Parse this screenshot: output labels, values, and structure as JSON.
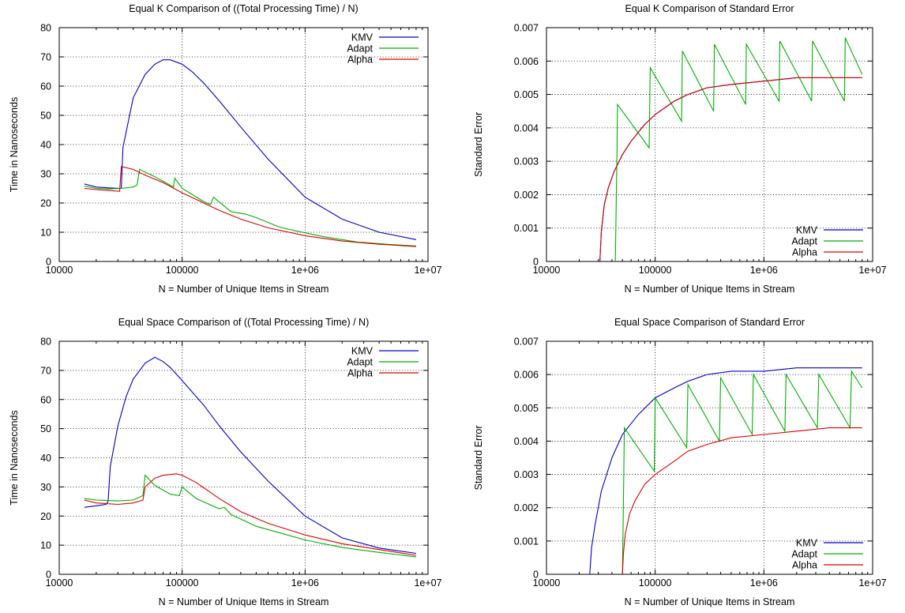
{
  "colors": {
    "KMV": "#0000cc",
    "Adapt": "#00b000",
    "Alpha": "#dd0000"
  },
  "chart_data": [
    {
      "type": "line",
      "title": "Equal K Comparison of ((Total Processing Time) / N)",
      "xlabel": "N = Number of Unique Items in Stream",
      "ylabel": "Time in Nanoseconds",
      "xscale": "log",
      "xlim": [
        10000,
        10000000
      ],
      "ylim": [
        0,
        80
      ],
      "xticks": [
        10000,
        100000,
        1000000,
        10000000
      ],
      "xtick_labels": [
        "10000",
        "100000",
        "1e+06",
        "1e+07"
      ],
      "yticks": [
        0,
        10,
        20,
        30,
        40,
        50,
        60,
        70,
        80
      ],
      "ytick_labels": [
        "0",
        "10",
        "20",
        "30",
        "40",
        "50",
        "60",
        "70",
        "80"
      ],
      "grid": true,
      "legend_position": "top-right",
      "series": [
        {
          "name": "KMV",
          "color_key": "KMV",
          "x": [
            16000,
            20000,
            25000,
            32000,
            33000,
            40000,
            50000,
            60000,
            70000,
            80000,
            100000,
            120000,
            150000,
            200000,
            300000,
            500000,
            1000000,
            2000000,
            4000000,
            8000000
          ],
          "y": [
            26.5,
            25.5,
            25.2,
            25,
            39,
            56,
            64,
            67.5,
            69,
            69,
            67.5,
            65,
            61,
            55,
            46,
            35,
            22,
            14.5,
            10,
            7.5
          ]
        },
        {
          "name": "Adapt",
          "color_key": "Adapt",
          "x": [
            16000,
            20000,
            25000,
            32000,
            40000,
            43000,
            45000,
            60000,
            85000,
            87000,
            100000,
            150000,
            170000,
            180000,
            250000,
            300000,
            330000,
            400000,
            600000,
            650000,
            1000000,
            1300000,
            1400000,
            2000000,
            2700000,
            3000000,
            5000000,
            8000000
          ],
          "y": [
            25.8,
            25,
            24.8,
            25,
            25.5,
            26.2,
            31.5,
            29,
            25.5,
            28.5,
            25,
            20.5,
            19.5,
            22,
            17,
            16.5,
            16.2,
            15,
            12,
            11.5,
            9.8,
            8.8,
            8.5,
            7.5,
            6.6,
            6.5,
            5.8,
            5.3
          ]
        },
        {
          "name": "Alpha",
          "color_key": "Alpha",
          "x": [
            16000,
            20000,
            25000,
            31000,
            32000,
            40000,
            50000,
            70000,
            100000,
            150000,
            200000,
            300000,
            500000,
            1000000,
            2000000,
            4000000,
            8000000
          ],
          "y": [
            25,
            24.6,
            24.3,
            24,
            32.5,
            31.5,
            29.5,
            27,
            23.5,
            20,
            17.5,
            14.5,
            11.5,
            8.8,
            7,
            5.9,
            5.1
          ]
        }
      ]
    },
    {
      "type": "line",
      "title": "Equal K Comparison of Standard Error",
      "xlabel": "N = Number of Unique Items in Stream",
      "ylabel": "Standard Error",
      "xscale": "log",
      "xlim": [
        10000,
        10000000
      ],
      "ylim": [
        0,
        0.007
      ],
      "xticks": [
        10000,
        100000,
        1000000,
        10000000
      ],
      "xtick_labels": [
        "10000",
        "100000",
        "1e+06",
        "1e+07"
      ],
      "yticks": [
        0,
        0.001,
        0.002,
        0.003,
        0.004,
        0.005,
        0.006,
        0.007
      ],
      "ytick_labels": [
        "0",
        "0.001",
        "0.002",
        "0.003",
        "0.004",
        "0.005",
        "0.006",
        "0.007"
      ],
      "grid": true,
      "legend_position": "bottom-right",
      "series": [
        {
          "name": "KMV",
          "color_key": "KMV",
          "x": [
            31000,
            32000,
            34000,
            37000,
            42000,
            50000,
            60000,
            80000,
            100000,
            150000,
            200000,
            300000,
            500000,
            1000000,
            2000000,
            4000000,
            8000000
          ],
          "y": [
            0,
            0.0009,
            0.0017,
            0.0022,
            0.0027,
            0.0032,
            0.0036,
            0.0041,
            0.0044,
            0.0048,
            0.005,
            0.0052,
            0.0053,
            0.0054,
            0.0055,
            0.0055,
            0.0055
          ]
        },
        {
          "name": "Adapt",
          "color_key": "Adapt",
          "x": [
            43000,
            44500,
            45000,
            88000,
            90000,
            175000,
            178000,
            345000,
            350000,
            680000,
            690000,
            1380000,
            1400000,
            2750000,
            2800000,
            5500000,
            5600000,
            8000000
          ],
          "y": [
            0,
            0.0033,
            0.0047,
            0.0034,
            0.0058,
            0.0042,
            0.0063,
            0.0045,
            0.0065,
            0.0047,
            0.0065,
            0.0048,
            0.0066,
            0.0048,
            0.0066,
            0.0048,
            0.0067,
            0.0056
          ]
        },
        {
          "name": "Alpha",
          "color_key": "Alpha",
          "x": [
            31000,
            32000,
            34000,
            37000,
            42000,
            50000,
            60000,
            80000,
            100000,
            150000,
            200000,
            300000,
            500000,
            1000000,
            2000000,
            4000000,
            8000000
          ],
          "y": [
            0,
            0.0009,
            0.0017,
            0.0022,
            0.0027,
            0.0032,
            0.0036,
            0.0041,
            0.0044,
            0.0048,
            0.005,
            0.0052,
            0.0053,
            0.0054,
            0.0055,
            0.0055,
            0.0055
          ]
        }
      ]
    },
    {
      "type": "line",
      "title": "Equal Space Comparison of ((Total Processing Time) / N)",
      "xlabel": "N = Number of Unique Items in Stream",
      "ylabel": "Time in Nanoseconds",
      "xscale": "log",
      "xlim": [
        10000,
        10000000
      ],
      "ylim": [
        0,
        80
      ],
      "xticks": [
        10000,
        100000,
        1000000,
        10000000
      ],
      "xtick_labels": [
        "10000",
        "100000",
        "1e+06",
        "1e+07"
      ],
      "yticks": [
        0,
        10,
        20,
        30,
        40,
        50,
        60,
        70,
        80
      ],
      "ytick_labels": [
        "0",
        "10",
        "20",
        "30",
        "40",
        "50",
        "60",
        "70",
        "80"
      ],
      "grid": true,
      "legend_position": "top-right",
      "series": [
        {
          "name": "KMV",
          "color_key": "KMV",
          "x": [
            16000,
            20000,
            24000,
            25000,
            26000,
            30000,
            35000,
            40000,
            50000,
            60000,
            70000,
            80000,
            100000,
            150000,
            200000,
            300000,
            500000,
            1000000,
            2000000,
            4000000,
            8000000
          ],
          "y": [
            23,
            23.5,
            24,
            25,
            37,
            51,
            61,
            67,
            72.5,
            74.5,
            73,
            71,
            66.5,
            58,
            51,
            42,
            32,
            20,
            12.5,
            9,
            7.2
          ]
        },
        {
          "name": "Adapt",
          "color_key": "Adapt",
          "x": [
            16000,
            20000,
            30000,
            40000,
            48000,
            50000,
            60000,
            80000,
            95000,
            100000,
            130000,
            200000,
            220000,
            250000,
            400000,
            1000000,
            2000000,
            4000000,
            8000000
          ],
          "y": [
            26,
            25.5,
            25.2,
            25.5,
            27,
            34,
            30.5,
            27.5,
            27,
            30,
            26,
            22.5,
            23,
            20.5,
            16.5,
            11.8,
            9.2,
            7.5,
            6
          ]
        },
        {
          "name": "Alpha",
          "color_key": "Alpha",
          "x": [
            16000,
            20000,
            30000,
            40000,
            48000,
            50000,
            60000,
            70000,
            90000,
            100000,
            130000,
            200000,
            300000,
            500000,
            1000000,
            2000000,
            4000000,
            8000000
          ],
          "y": [
            25.5,
            24.5,
            24,
            24.5,
            25.5,
            30,
            33,
            34,
            34.5,
            34,
            31.5,
            26,
            21.5,
            17.5,
            13.5,
            10.5,
            8.5,
            6.5
          ]
        }
      ]
    },
    {
      "type": "line",
      "title": "Equal Space Comparison of Standard Error",
      "xlabel": "N = Number of Unique Items in Stream",
      "ylabel": "Standard Error",
      "xscale": "log",
      "xlim": [
        10000,
        10000000
      ],
      "ylim": [
        0,
        0.007
      ],
      "xticks": [
        10000,
        100000,
        1000000,
        10000000
      ],
      "xtick_labels": [
        "10000",
        "100000",
        "1e+06",
        "1e+07"
      ],
      "yticks": [
        0,
        0.001,
        0.002,
        0.003,
        0.004,
        0.005,
        0.006,
        0.007
      ],
      "ytick_labels": [
        "0",
        "0.001",
        "0.002",
        "0.003",
        "0.004",
        "0.005",
        "0.006",
        "0.007"
      ],
      "grid": true,
      "legend_position": "bottom-right",
      "series": [
        {
          "name": "KMV",
          "color_key": "KMV",
          "x": [
            25000,
            26000,
            28000,
            32000,
            40000,
            50000,
            70000,
            100000,
            150000,
            200000,
            300000,
            500000,
            1000000,
            2000000,
            4000000,
            8000000
          ],
          "y": [
            0,
            0.0008,
            0.0015,
            0.0025,
            0.0035,
            0.0042,
            0.0048,
            0.0053,
            0.0056,
            0.0058,
            0.006,
            0.0061,
            0.0061,
            0.0062,
            0.0062,
            0.0062
          ]
        },
        {
          "name": "Adapt",
          "color_key": "Adapt",
          "x": [
            50000,
            51500,
            52000,
            98000,
            100000,
            195000,
            200000,
            390000,
            400000,
            780000,
            800000,
            1560000,
            1600000,
            3100000,
            3200000,
            6200000,
            6400000,
            8000000
          ],
          "y": [
            0,
            0.0032,
            0.0044,
            0.0031,
            0.0053,
            0.0038,
            0.0057,
            0.004,
            0.0059,
            0.0042,
            0.006,
            0.0043,
            0.006,
            0.0044,
            0.006,
            0.0044,
            0.0061,
            0.0056
          ]
        },
        {
          "name": "Alpha",
          "color_key": "Alpha",
          "x": [
            50000,
            51000,
            53000,
            58000,
            65000,
            80000,
            100000,
            150000,
            200000,
            300000,
            500000,
            1000000,
            2000000,
            4000000,
            8000000
          ],
          "y": [
            0,
            0.0006,
            0.0012,
            0.0018,
            0.0022,
            0.0027,
            0.003,
            0.0034,
            0.0037,
            0.0039,
            0.0041,
            0.0042,
            0.0043,
            0.0044,
            0.0044
          ]
        }
      ]
    }
  ]
}
